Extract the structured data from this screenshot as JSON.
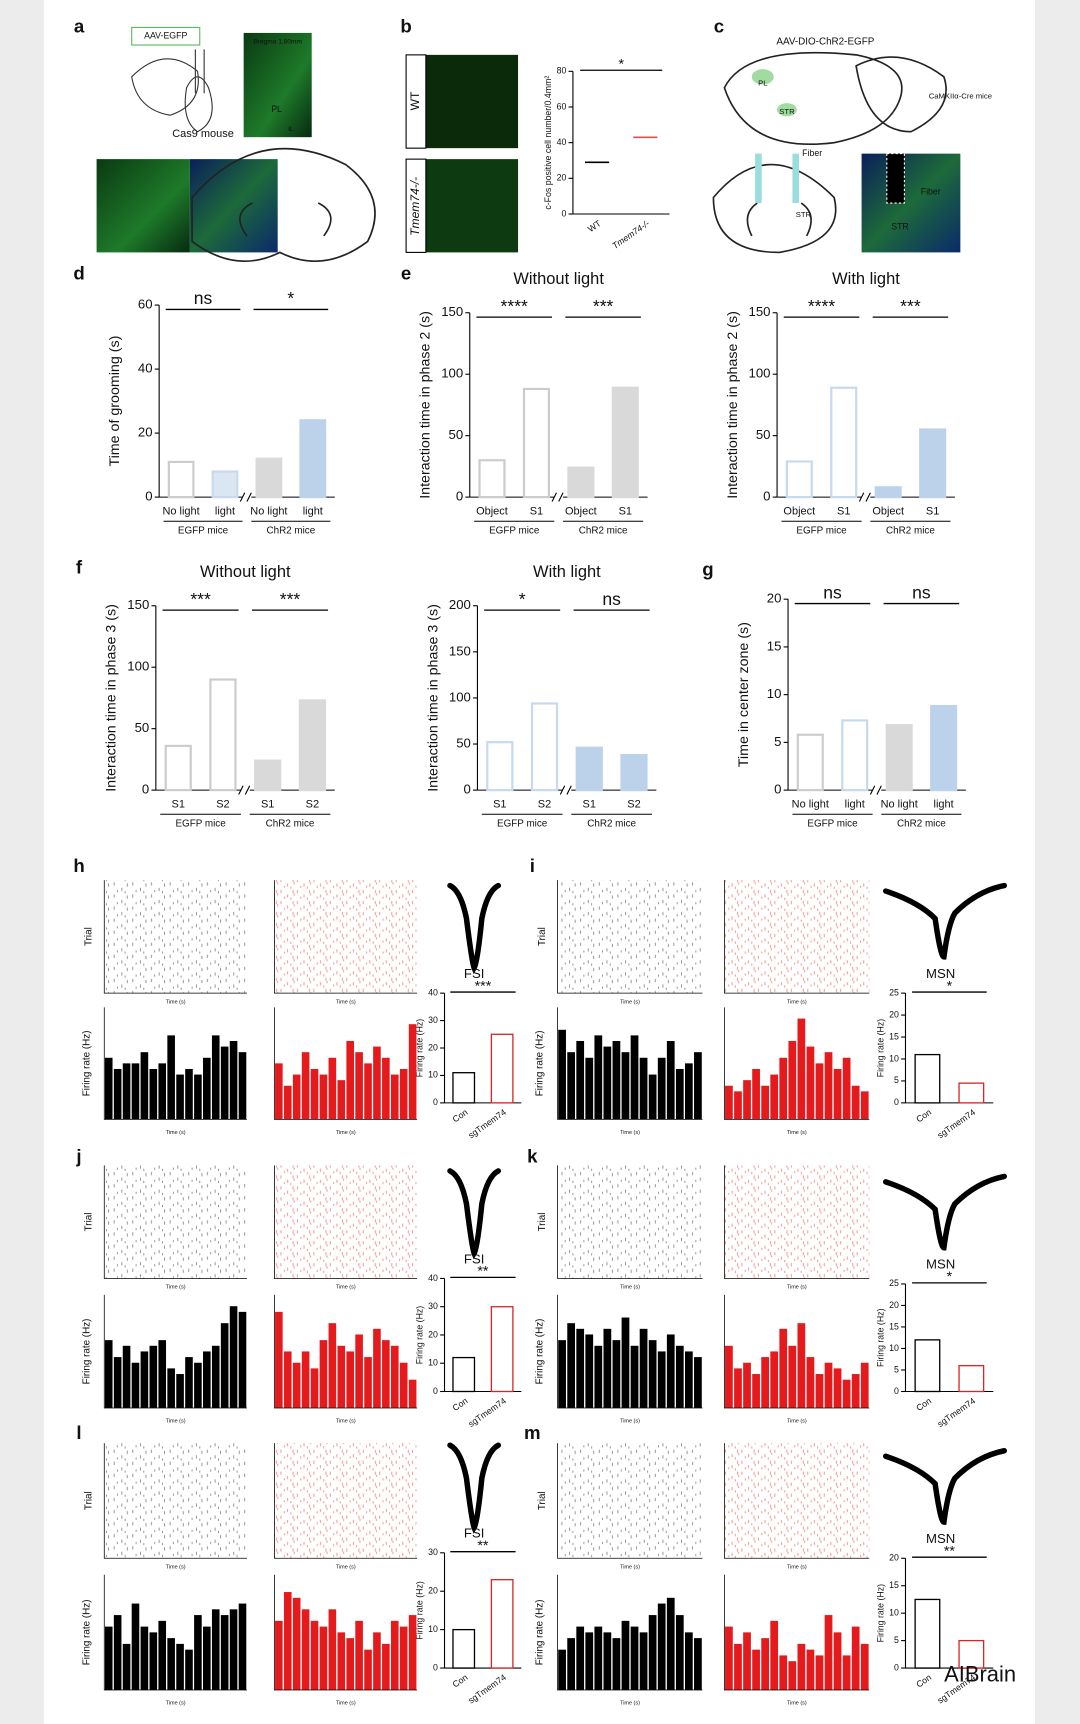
{
  "panel_letters": [
    "a",
    "b",
    "c",
    "d",
    "e",
    "f",
    "g",
    "h",
    "i",
    "j",
    "k",
    "l",
    "m"
  ],
  "panel_a": {
    "virus": "AAV-EGFP",
    "mouse": "Cas9 mouse",
    "bregma": "Bregma 1.80mm",
    "region": "PL",
    "region2": "IL"
  },
  "panel_b": {
    "genotypes": [
      "WT",
      "Tmem74-/-"
    ]
  },
  "panel_c": {
    "virus": "AAV-DIO-ChR2-EGFP",
    "mouse": "CaMKIIα-Cre mice",
    "labels": [
      "PL",
      "STR",
      "Fiber",
      "STR",
      "Fiber"
    ]
  },
  "figure_texts": {
    "trial": "Trial",
    "firing_rate": "Firing rate (Hz)",
    "time": "Time (s)"
  },
  "watermark": "AIBrain",
  "chart_data": [
    {
      "type": "dot",
      "ylabel": "c-Fos positive cell number/0.4mm²",
      "categories": [
        "WT",
        "Tmem74-/-"
      ],
      "values": [
        29,
        43
      ],
      "ylim": [
        0,
        80
      ],
      "yticks": [
        0,
        20,
        40,
        60,
        80
      ],
      "significance": [
        "*"
      ],
      "colors": [
        "#000000",
        "#d9534f"
      ]
    },
    {
      "type": "bar",
      "ylabel": "Time of grooming (s)",
      "categories": [
        "No light",
        "light",
        "No light",
        "light"
      ],
      "groups": [
        "EGFP mice",
        "ChR2 mice"
      ],
      "values": [
        11,
        8,
        12,
        24
      ],
      "ylim": [
        0,
        60
      ],
      "yticks": [
        0,
        20,
        40,
        60
      ],
      "significance": [
        "ns",
        "*"
      ],
      "colors": [
        "#ffffff",
        "#dbe6f3",
        "#d9d9d9",
        "#bcd2ea"
      ],
      "edge_colors": [
        "#cccccc",
        "#c7d9ee",
        "#d9d9d9",
        "#bcd2ea"
      ]
    },
    {
      "type": "bar",
      "title": "Without light",
      "ylabel": "Interaction time in phase 2 (s)",
      "categories": [
        "Object",
        "S1",
        "Object",
        "S1"
      ],
      "groups": [
        "EGFP mice",
        "ChR2 mice"
      ],
      "values": [
        30,
        88,
        24,
        89
      ],
      "ylim": [
        0,
        150
      ],
      "yticks": [
        0,
        50,
        100,
        150
      ],
      "significance": [
        "****",
        "***"
      ],
      "colors": [
        "#ffffff",
        "#ffffff",
        "#d9d9d9",
        "#d9d9d9"
      ],
      "edge_colors": [
        "#cccccc",
        "#cccccc",
        "#d9d9d9",
        "#d9d9d9"
      ]
    },
    {
      "type": "bar",
      "title": "With light",
      "ylabel": "Interaction time in phase 2 (s)",
      "categories": [
        "Object",
        "S1",
        "Object",
        "S1"
      ],
      "groups": [
        "EGFP mice",
        "ChR2 mice"
      ],
      "values": [
        29,
        89,
        8,
        55
      ],
      "ylim": [
        0,
        150
      ],
      "yticks": [
        0,
        50,
        100,
        150
      ],
      "significance": [
        "****",
        "***"
      ],
      "colors": [
        "#ffffff",
        "#ffffff",
        "#bcd2ea",
        "#bcd2ea"
      ],
      "edge_colors": [
        "#c7d9ee",
        "#c7d9ee",
        "#bcd2ea",
        "#bcd2ea"
      ]
    },
    {
      "type": "bar",
      "title": "Without light",
      "ylabel": "Interaction time in phase 3 (s)",
      "categories": [
        "S1",
        "S2",
        "S1",
        "S2"
      ],
      "groups": [
        "EGFP mice",
        "ChR2 mice"
      ],
      "values": [
        36,
        90,
        24,
        73
      ],
      "ylim": [
        0,
        150
      ],
      "yticks": [
        0,
        50,
        100,
        150
      ],
      "significance": [
        "***",
        "***"
      ],
      "colors": [
        "#ffffff",
        "#ffffff",
        "#d9d9d9",
        "#d9d9d9"
      ],
      "edge_colors": [
        "#cccccc",
        "#cccccc",
        "#d9d9d9",
        "#d9d9d9"
      ]
    },
    {
      "type": "bar",
      "title": "With light",
      "ylabel": "Interaction time in phase 3 (s)",
      "categories": [
        "S1",
        "S2",
        "S1",
        "S2"
      ],
      "groups": [
        "EGFP mice",
        "ChR2 mice"
      ],
      "values": [
        52,
        94,
        46,
        38
      ],
      "ylim": [
        0,
        200
      ],
      "yticks": [
        0,
        50,
        100,
        150,
        200
      ],
      "significance": [
        "*",
        "ns"
      ],
      "colors": [
        "#ffffff",
        "#ffffff",
        "#bcd2ea",
        "#bcd2ea"
      ],
      "edge_colors": [
        "#c7d9ee",
        "#c7d9ee",
        "#bcd2ea",
        "#bcd2ea"
      ]
    },
    {
      "type": "bar",
      "ylabel": "Time in center zone (s)",
      "categories": [
        "No light",
        "light",
        "No light",
        "light"
      ],
      "groups": [
        "EGFP mice",
        "ChR2 mice"
      ],
      "values": [
        5.8,
        7.3,
        6.8,
        8.8
      ],
      "ylim": [
        0,
        20
      ],
      "yticks": [
        0,
        5,
        10,
        15,
        20
      ],
      "significance": [
        "ns",
        "ns"
      ],
      "colors": [
        "#ffffff",
        "#ffffff",
        "#d9d9d9",
        "#bcd2ea"
      ],
      "edge_colors": [
        "#cccccc",
        "#c7d9ee",
        "#d9d9d9",
        "#bcd2ea"
      ]
    },
    {
      "type": "bar",
      "label": "FSI",
      "ylabel": "Firing rate (Hz)",
      "categories": [
        "Con",
        "sgTmem74"
      ],
      "values": [
        11,
        25
      ],
      "ylim": [
        0,
        40
      ],
      "yticks": [
        0,
        10,
        20,
        30,
        40
      ],
      "significance": [
        "***"
      ],
      "colors": [
        "#ffffff",
        "#ffffff"
      ],
      "edge_colors": [
        "#000000",
        "#d62728"
      ]
    },
    {
      "type": "bar",
      "label": "MSN",
      "ylabel": "Firing rate (Hz)",
      "categories": [
        "Con",
        "sgTmem74"
      ],
      "values": [
        11,
        4.5
      ],
      "ylim": [
        0,
        25
      ],
      "yticks": [
        0,
        5,
        10,
        15,
        20,
        25
      ],
      "significance": [
        "*"
      ],
      "colors": [
        "#ffffff",
        "#ffffff"
      ],
      "edge_colors": [
        "#000000",
        "#d62728"
      ]
    },
    {
      "type": "bar",
      "label": "FSI",
      "ylabel": "Firing rate (Hz)",
      "categories": [
        "Con",
        "sgTmem74"
      ],
      "values": [
        12,
        30
      ],
      "ylim": [
        0,
        40
      ],
      "yticks": [
        0,
        10,
        20,
        30,
        40
      ],
      "significance": [
        "**"
      ],
      "colors": [
        "#ffffff",
        "#ffffff"
      ],
      "edge_colors": [
        "#000000",
        "#d62728"
      ]
    },
    {
      "type": "bar",
      "label": "MSN",
      "ylabel": "Firing rate (Hz)",
      "categories": [
        "Con",
        "sgTmem74"
      ],
      "values": [
        12,
        6
      ],
      "ylim": [
        0,
        25
      ],
      "yticks": [
        0,
        5,
        10,
        15,
        20,
        25
      ],
      "significance": [
        "*"
      ],
      "colors": [
        "#ffffff",
        "#ffffff"
      ],
      "edge_colors": [
        "#000000",
        "#d62728"
      ]
    },
    {
      "type": "bar",
      "label": "FSI",
      "ylabel": "Firing rate (Hz)",
      "categories": [
        "Con",
        "sgTmem74"
      ],
      "values": [
        10,
        23
      ],
      "ylim": [
        0,
        30
      ],
      "yticks": [
        0,
        10,
        20,
        30
      ],
      "significance": [
        "**"
      ],
      "colors": [
        "#ffffff",
        "#ffffff"
      ],
      "edge_colors": [
        "#000000",
        "#d62728"
      ]
    },
    {
      "type": "bar",
      "label": "MSN",
      "ylabel": "Firing rate (Hz)",
      "categories": [
        "Con",
        "sgTmem74"
      ],
      "values": [
        12.5,
        5
      ],
      "ylim": [
        0,
        20
      ],
      "yticks": [
        0,
        5,
        10,
        15,
        20
      ],
      "significance": [
        "**"
      ],
      "colors": [
        "#ffffff",
        "#ffffff"
      ],
      "edge_colors": [
        "#000000",
        "#d62728"
      ]
    },
    {
      "type": "histogram",
      "color": "#000000",
      "xlim": [
        0,
        2
      ],
      "ylim": [
        0,
        1
      ],
      "bins": [
        0,
        0.125,
        0.25,
        0.375,
        0.5,
        0.625,
        0.75,
        0.875,
        1,
        1.125,
        1.25,
        1.375,
        1.5,
        1.625,
        1.75,
        1.875,
        2
      ],
      "values": [
        0.55,
        0.45,
        0.5,
        0.5,
        0.6,
        0.45,
        0.5,
        0.75,
        0.4,
        0.45,
        0.4,
        0.55,
        0.75,
        0.65,
        0.7,
        0.6
      ]
    },
    {
      "type": "histogram",
      "color": "#e41a1c",
      "xlim": [
        0,
        2
      ],
      "ylim": [
        0,
        1
      ],
      "bins": [
        0,
        0.125,
        0.25,
        0.375,
        0.5,
        0.625,
        0.75,
        0.875,
        1,
        1.125,
        1.25,
        1.375,
        1.5,
        1.625,
        1.75,
        1.875,
        2
      ],
      "values": [
        0.5,
        0.3,
        0.4,
        0.6,
        0.45,
        0.4,
        0.55,
        0.35,
        0.7,
        0.6,
        0.5,
        0.65,
        0.55,
        0.4,
        0.45,
        0.85
      ]
    },
    {
      "type": "histogram",
      "color": "#000000",
      "xlim": [
        0,
        2
      ],
      "ylim": [
        0,
        1
      ],
      "bins": [
        0,
        0.125,
        0.25,
        0.375,
        0.5,
        0.625,
        0.75,
        0.875,
        1,
        1.125,
        1.25,
        1.375,
        1.5,
        1.625,
        1.75,
        1.875,
        2
      ],
      "values": [
        0.8,
        0.6,
        0.7,
        0.55,
        0.75,
        0.65,
        0.7,
        0.6,
        0.75,
        0.55,
        0.4,
        0.55,
        0.7,
        0.45,
        0.5,
        0.6
      ]
    },
    {
      "type": "histogram",
      "color": "#e41a1c",
      "xlim": [
        0,
        2
      ],
      "ylim": [
        0,
        1
      ],
      "bins": [
        0,
        0.125,
        0.25,
        0.375,
        0.5,
        0.625,
        0.75,
        0.875,
        1,
        1.125,
        1.25,
        1.375,
        1.5,
        1.625,
        1.75,
        1.875,
        2
      ],
      "values": [
        0.3,
        0.25,
        0.35,
        0.45,
        0.3,
        0.4,
        0.55,
        0.7,
        0.9,
        0.65,
        0.5,
        0.6,
        0.45,
        0.55,
        0.3,
        0.25
      ]
    },
    {
      "type": "histogram",
      "color": "#000000",
      "xlim": [
        0,
        2
      ],
      "ylim": [
        0,
        1
      ],
      "bins": [
        0,
        0.125,
        0.25,
        0.375,
        0.5,
        0.625,
        0.75,
        0.875,
        1,
        1.125,
        1.25,
        1.375,
        1.5,
        1.625,
        1.75,
        1.875,
        2
      ],
      "values": [
        0.6,
        0.45,
        0.55,
        0.4,
        0.5,
        0.55,
        0.6,
        0.35,
        0.3,
        0.45,
        0.4,
        0.5,
        0.55,
        0.75,
        0.9,
        0.85
      ]
    },
    {
      "type": "histogram",
      "color": "#e41a1c",
      "xlim": [
        0,
        2
      ],
      "ylim": [
        0,
        1
      ],
      "bins": [
        0,
        0.125,
        0.25,
        0.375,
        0.5,
        0.625,
        0.75,
        0.875,
        1,
        1.125,
        1.25,
        1.375,
        1.5,
        1.625,
        1.75,
        1.875,
        2
      ],
      "values": [
        0.85,
        0.5,
        0.4,
        0.5,
        0.35,
        0.6,
        0.75,
        0.55,
        0.5,
        0.65,
        0.45,
        0.7,
        0.6,
        0.55,
        0.4,
        0.25
      ]
    },
    {
      "type": "histogram",
      "color": "#000000",
      "xlim": [
        0,
        2
      ],
      "ylim": [
        0,
        1
      ],
      "bins": [
        0,
        0.125,
        0.25,
        0.375,
        0.5,
        0.625,
        0.75,
        0.875,
        1,
        1.125,
        1.25,
        1.375,
        1.5,
        1.625,
        1.75,
        1.875,
        2
      ],
      "values": [
        0.6,
        0.75,
        0.7,
        0.65,
        0.55,
        0.7,
        0.6,
        0.8,
        0.55,
        0.7,
        0.6,
        0.5,
        0.65,
        0.55,
        0.5,
        0.45
      ]
    },
    {
      "type": "histogram",
      "color": "#e41a1c",
      "xlim": [
        0,
        2
      ],
      "ylim": [
        0,
        1
      ],
      "bins": [
        0,
        0.125,
        0.25,
        0.375,
        0.5,
        0.625,
        0.75,
        0.875,
        1,
        1.125,
        1.25,
        1.375,
        1.5,
        1.625,
        1.75,
        1.875,
        2
      ],
      "values": [
        0.55,
        0.35,
        0.4,
        0.3,
        0.45,
        0.5,
        0.7,
        0.55,
        0.75,
        0.45,
        0.3,
        0.4,
        0.35,
        0.25,
        0.3,
        0.4
      ]
    },
    {
      "type": "histogram",
      "color": "#000000",
      "xlim": [
        0,
        2
      ],
      "ylim": [
        0,
        1
      ],
      "bins": [
        0,
        0.125,
        0.25,
        0.375,
        0.5,
        0.625,
        0.75,
        0.875,
        1,
        1.125,
        1.25,
        1.375,
        1.5,
        1.625,
        1.75,
        1.875,
        2
      ],
      "values": [
        0.55,
        0.65,
        0.4,
        0.75,
        0.55,
        0.5,
        0.6,
        0.45,
        0.4,
        0.35,
        0.65,
        0.55,
        0.7,
        0.65,
        0.7,
        0.75
      ]
    },
    {
      "type": "histogram",
      "color": "#e41a1c",
      "xlim": [
        0,
        2
      ],
      "ylim": [
        0,
        1
      ],
      "bins": [
        0,
        0.125,
        0.25,
        0.375,
        0.5,
        0.625,
        0.75,
        0.875,
        1,
        1.125,
        1.25,
        1.375,
        1.5,
        1.625,
        1.75,
        1.875,
        2
      ],
      "values": [
        0.6,
        0.85,
        0.8,
        0.7,
        0.6,
        0.55,
        0.7,
        0.5,
        0.45,
        0.6,
        0.35,
        0.5,
        0.4,
        0.6,
        0.55,
        0.65
      ]
    },
    {
      "type": "histogram",
      "color": "#000000",
      "xlim": [
        0,
        2
      ],
      "ylim": [
        0,
        1
      ],
      "bins": [
        0,
        0.125,
        0.25,
        0.375,
        0.5,
        0.625,
        0.75,
        0.875,
        1,
        1.125,
        1.25,
        1.375,
        1.5,
        1.625,
        1.75,
        1.875,
        2
      ],
      "values": [
        0.35,
        0.45,
        0.55,
        0.5,
        0.55,
        0.5,
        0.45,
        0.6,
        0.55,
        0.5,
        0.65,
        0.75,
        0.8,
        0.65,
        0.5,
        0.45
      ]
    },
    {
      "type": "histogram",
      "color": "#e41a1c",
      "xlim": [
        0,
        2
      ],
      "ylim": [
        0,
        1
      ],
      "bins": [
        0,
        0.125,
        0.25,
        0.375,
        0.5,
        0.625,
        0.75,
        0.875,
        1,
        1.125,
        1.25,
        1.375,
        1.5,
        1.625,
        1.75,
        1.875,
        2
      ],
      "values": [
        0.55,
        0.4,
        0.5,
        0.35,
        0.45,
        0.6,
        0.3,
        0.25,
        0.4,
        0.35,
        0.3,
        0.65,
        0.5,
        0.3,
        0.55,
        0.4
      ]
    }
  ]
}
